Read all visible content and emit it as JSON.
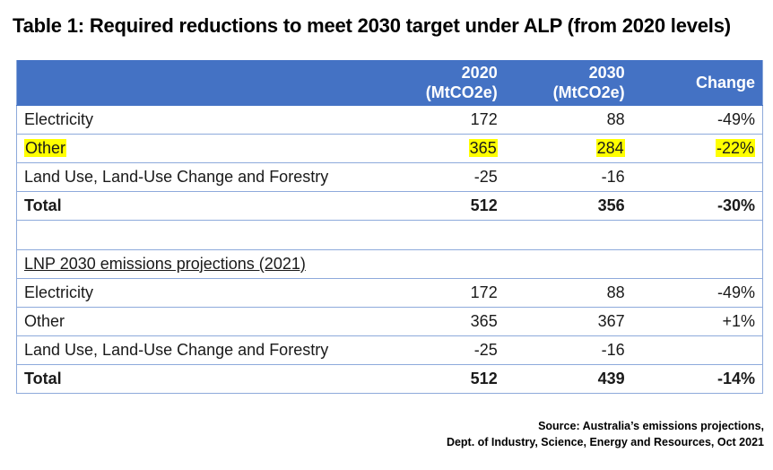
{
  "title": "Table 1: Required reductions to meet 2030 target under ALP (from 2020 levels)",
  "header": {
    "col1": "",
    "col2_line1": "2020",
    "col2_line2": "(MtCO2e)",
    "col3_line1": "2030",
    "col3_line2": "(MtCO2e)",
    "col4": "Change"
  },
  "alp_rows": [
    {
      "label": "Electricity",
      "v2020": "172",
      "v2030": "88",
      "change": "-49%",
      "highlight": false
    },
    {
      "label": "Other",
      "v2020": "365",
      "v2030": "284",
      "change": "-22%",
      "highlight": true
    },
    {
      "label": "Land Use, Land-Use Change and Forestry",
      "v2020": "-25",
      "v2030": "-16",
      "change": "",
      "highlight": false
    }
  ],
  "alp_total": {
    "label": "Total",
    "v2020": "512",
    "v2030": "356",
    "change": "-30%"
  },
  "lnp_section_title": "LNP 2030 emissions projections (2021)",
  "lnp_rows": [
    {
      "label": "Electricity",
      "v2020": "172",
      "v2030": "88",
      "change": "-49%"
    },
    {
      "label": "Other",
      "v2020": "365",
      "v2030": "367",
      "change": "+1%"
    },
    {
      "label": "Land Use, Land-Use Change and Forestry",
      "v2020": "-25",
      "v2030": "-16",
      "change": ""
    }
  ],
  "lnp_total": {
    "label": "Total",
    "v2020": "512",
    "v2030": "439",
    "change": "-14%"
  },
  "source_line1": "Source: Australia’s emissions projections,",
  "source_line2": "Dept. of Industry, Science, Energy and Resources, Oct 2021",
  "colors": {
    "header_bg": "#4472c4",
    "border": "#8eaadb",
    "highlight": "#ffff00"
  }
}
